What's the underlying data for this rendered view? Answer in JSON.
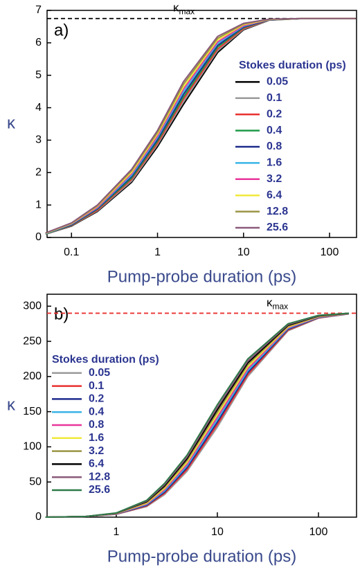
{
  "chart_data": [
    {
      "type": "line",
      "panel_label": "a)",
      "x_label": "Pump-probe duration (ps)",
      "y_label": "κ",
      "xscale": "log",
      "xlim": [
        0.052,
        206
      ],
      "ylim": [
        0,
        7
      ],
      "xticks": [
        0.1,
        1,
        10,
        100
      ],
      "yticks": [
        0,
        1,
        2,
        3,
        4,
        5,
        6,
        7
      ],
      "legend_title": "Stokes duration (ps)",
      "legend_position": "upper right",
      "reference_line": {
        "value": 6.75,
        "label": "κ",
        "sublabel": "max",
        "color": "#000000"
      },
      "x": [
        0.05,
        0.1,
        0.2,
        0.5,
        1,
        2,
        5,
        10,
        20,
        50,
        100,
        200
      ],
      "series": [
        {
          "name": "0.05",
          "color": "#000000",
          "values": [
            0.1,
            0.35,
            0.8,
            1.7,
            2.8,
            4.1,
            5.7,
            6.4,
            6.7,
            6.75,
            6.75,
            6.75
          ]
        },
        {
          "name": "0.1",
          "color": "#9a9a9a",
          "values": [
            0.1,
            0.36,
            0.82,
            1.74,
            2.86,
            4.18,
            5.76,
            6.42,
            6.7,
            6.75,
            6.75,
            6.75
          ]
        },
        {
          "name": "0.2",
          "color": "#e8312f",
          "values": [
            0.11,
            0.37,
            0.84,
            1.79,
            2.91,
            4.26,
            5.81,
            6.44,
            6.71,
            6.75,
            6.75,
            6.75
          ]
        },
        {
          "name": "0.4",
          "color": "#1e9a48",
          "values": [
            0.11,
            0.38,
            0.87,
            1.83,
            2.97,
            4.33,
            5.87,
            6.47,
            6.71,
            6.75,
            6.75,
            6.75
          ]
        },
        {
          "name": "0.8",
          "color": "#1d2a8c",
          "values": [
            0.12,
            0.39,
            0.89,
            1.88,
            3.02,
            4.41,
            5.92,
            6.49,
            6.71,
            6.75,
            6.75,
            6.75
          ]
        },
        {
          "name": "1.6",
          "color": "#39b4e6",
          "values": [
            0.12,
            0.41,
            0.91,
            1.92,
            3.08,
            4.49,
            5.98,
            6.51,
            6.72,
            6.75,
            6.75,
            6.75
          ]
        },
        {
          "name": "3.2",
          "color": "#e8359a",
          "values": [
            0.13,
            0.42,
            0.93,
            1.97,
            3.13,
            4.57,
            6.03,
            6.53,
            6.72,
            6.75,
            6.75,
            6.75
          ]
        },
        {
          "name": "6.4",
          "color": "#f0e93a",
          "values": [
            0.13,
            0.43,
            0.96,
            2.01,
            3.19,
            4.64,
            6.09,
            6.56,
            6.72,
            6.75,
            6.75,
            6.75
          ]
        },
        {
          "name": "12.8",
          "color": "#9a9444",
          "values": [
            0.14,
            0.44,
            0.98,
            2.06,
            3.24,
            4.72,
            6.14,
            6.58,
            6.73,
            6.75,
            6.75,
            6.75
          ]
        },
        {
          "name": "25.6",
          "color": "#8a5a7a",
          "values": [
            0.14,
            0.45,
            1.0,
            2.1,
            3.3,
            4.8,
            6.2,
            6.6,
            6.73,
            6.75,
            6.75,
            6.75
          ]
        }
      ]
    },
    {
      "type": "line",
      "panel_label": "b)",
      "x_label": "Pump-probe duration (ps)",
      "y_label": "κ",
      "xscale": "log",
      "xlim": [
        0.207,
        238
      ],
      "ylim": [
        0,
        317
      ],
      "xticks": [
        1,
        10,
        100
      ],
      "yticks": [
        0,
        50,
        100,
        150,
        200,
        250,
        300
      ],
      "legend_title": "Stokes duration (ps)",
      "legend_position": "upper left",
      "reference_line": {
        "value": 290,
        "label": "κ",
        "sublabel": "max",
        "color": "#e8312f"
      },
      "x": [
        0.2,
        0.5,
        1,
        2,
        3,
        5,
        10,
        20,
        50,
        100,
        200
      ],
      "series": [
        {
          "name": "0.05",
          "color": "#9a9a9a",
          "values": [
            0,
            1,
            4,
            15,
            32,
            65,
            128,
            200,
            265,
            283,
            289
          ]
        },
        {
          "name": "0.1",
          "color": "#e8312f",
          "values": [
            0,
            1,
            4.2,
            16,
            33.8,
            67.6,
            131.6,
            202.8,
            266.1,
            283.4,
            289.1
          ]
        },
        {
          "name": "0.2",
          "color": "#1d2a8c",
          "values": [
            0,
            1,
            4.4,
            17,
            35.6,
            70.1,
            135.1,
            205.6,
            267.2,
            283.9,
            289.2
          ]
        },
        {
          "name": "0.4",
          "color": "#39b4e6",
          "values": [
            0,
            1,
            4.7,
            18,
            37.3,
            72.7,
            138.7,
            208.3,
            268.3,
            284.3,
            289.3
          ]
        },
        {
          "name": "0.8",
          "color": "#e8359a",
          "values": [
            0,
            1,
            4.9,
            19,
            39.1,
            75.2,
            142.2,
            211.1,
            269.4,
            284.8,
            289.4
          ]
        },
        {
          "name": "1.6",
          "color": "#f0e93a",
          "values": [
            0,
            1,
            5.1,
            20,
            40.9,
            77.8,
            145.8,
            213.9,
            270.6,
            285.2,
            289.6
          ]
        },
        {
          "name": "3.2",
          "color": "#9a9444",
          "values": [
            0,
            1,
            5.3,
            21,
            42.7,
            80.3,
            149.3,
            216.7,
            271.7,
            285.7,
            289.7
          ]
        },
        {
          "name": "6.4",
          "color": "#000000",
          "values": [
            0,
            1,
            5.6,
            22,
            44.4,
            82.9,
            152.9,
            219.4,
            272.8,
            286.1,
            289.8
          ]
        },
        {
          "name": "12.8",
          "color": "#8a5a7a",
          "values": [
            0,
            1,
            5.8,
            23,
            46.2,
            85.4,
            156.4,
            222.2,
            273.9,
            286.6,
            289.9
          ]
        },
        {
          "name": "25.6",
          "color": "#2e7a4a",
          "values": [
            0,
            1,
            6,
            24,
            48,
            88,
            160,
            225,
            275,
            287,
            290
          ]
        }
      ]
    }
  ]
}
